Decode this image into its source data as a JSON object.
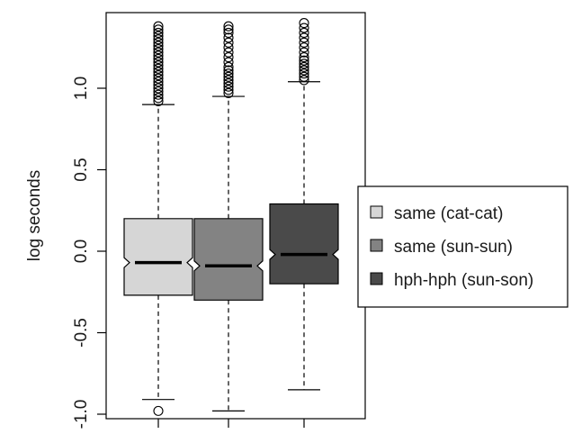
{
  "chart_data": {
    "type": "boxplot",
    "ylabel": "log seconds",
    "ylim": [
      -1.05,
      1.45
    ],
    "yticks": [
      -1.0,
      -0.5,
      0.0,
      0.5,
      1.0
    ],
    "ytick_labels": [
      "-1.0",
      "-0.5",
      "0.0",
      "0.5",
      "1.0"
    ],
    "notched": true,
    "legend_position": "right",
    "series": [
      {
        "name": "same (cat-cat)",
        "color": "#d6d6d6",
        "whisker_low": -0.91,
        "q1": -0.27,
        "median": -0.07,
        "q3": 0.2,
        "whisker_high": 0.9,
        "notch_low": -0.1,
        "notch_high": -0.04,
        "outliers": [
          -0.98,
          0.92,
          0.94,
          0.96,
          0.98,
          1.0,
          1.02,
          1.04,
          1.06,
          1.08,
          1.1,
          1.12,
          1.14,
          1.16,
          1.18,
          1.2,
          1.22,
          1.24,
          1.26,
          1.28,
          1.3,
          1.32,
          1.34,
          1.36,
          1.38
        ]
      },
      {
        "name": "same (sun-sun)",
        "color": "#838383",
        "whisker_low": -0.98,
        "q1": -0.3,
        "median": -0.09,
        "q3": 0.2,
        "whisker_high": 0.95,
        "notch_low": -0.12,
        "notch_high": -0.06,
        "outliers": [
          0.97,
          0.99,
          1.01,
          1.03,
          1.05,
          1.07,
          1.09,
          1.11,
          1.13,
          1.16,
          1.19,
          1.22,
          1.25,
          1.28,
          1.31,
          1.34,
          1.36,
          1.38
        ]
      },
      {
        "name": "hph-hph (sun-son)",
        "color": "#4a4a4a",
        "whisker_low": -0.85,
        "q1": -0.2,
        "median": -0.02,
        "q3": 0.29,
        "whisker_high": 1.04,
        "notch_low": -0.05,
        "notch_high": 0.01,
        "outliers": [
          1.05,
          1.07,
          1.09,
          1.11,
          1.13,
          1.15,
          1.17,
          1.19,
          1.22,
          1.25,
          1.28,
          1.31,
          1.34,
          1.37,
          1.4
        ]
      }
    ]
  }
}
